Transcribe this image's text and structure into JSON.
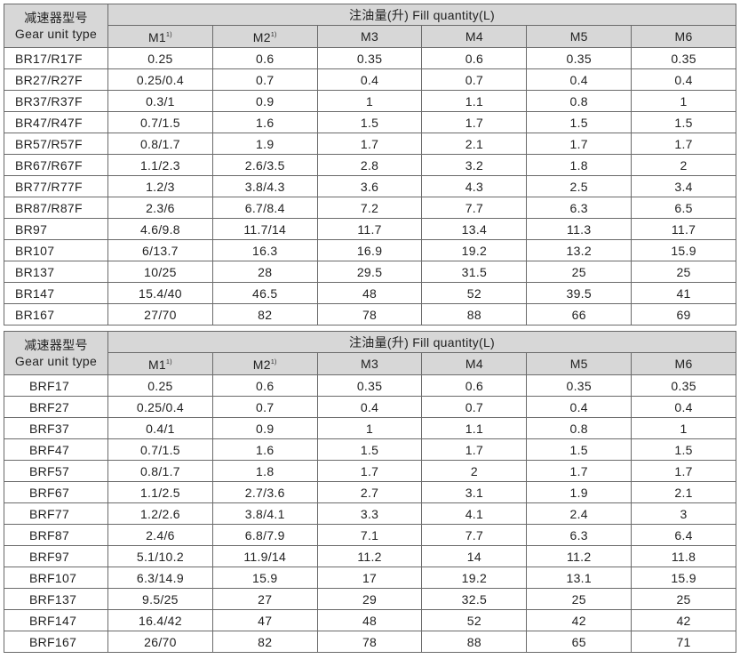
{
  "header": {
    "type_cn": "减速器型号",
    "type_en": "Gear unit type",
    "fill_quantity": "注油量(升) Fill quantity(L)",
    "positions": [
      "M1",
      "M2",
      "M3",
      "M4",
      "M5",
      "M6"
    ],
    "footnote_mark": "1)"
  },
  "tables": [
    {
      "rows": [
        [
          "BR17/R17F",
          "0.25",
          "0.6",
          "0.35",
          "0.6",
          "0.35",
          "0.35"
        ],
        [
          "BR27/R27F",
          "0.25/0.4",
          "0.7",
          "0.4",
          "0.7",
          "0.4",
          "0.4"
        ],
        [
          "BR37/R37F",
          "0.3/1",
          "0.9",
          "1",
          "1.1",
          "0.8",
          "1"
        ],
        [
          "BR47/R47F",
          "0.7/1.5",
          "1.6",
          "1.5",
          "1.7",
          "1.5",
          "1.5"
        ],
        [
          "BR57/R57F",
          "0.8/1.7",
          "1.9",
          "1.7",
          "2.1",
          "1.7",
          "1.7"
        ],
        [
          "BR67/R67F",
          "1.1/2.3",
          "2.6/3.5",
          "2.8",
          "3.2",
          "1.8",
          "2"
        ],
        [
          "BR77/R77F",
          "1.2/3",
          "3.8/4.3",
          "3.6",
          "4.3",
          "2.5",
          "3.4"
        ],
        [
          "BR87/R87F",
          "2.3/6",
          "6.7/8.4",
          "7.2",
          "7.7",
          "6.3",
          "6.5"
        ],
        [
          "BR97",
          "4.6/9.8",
          "11.7/14",
          "11.7",
          "13.4",
          "11.3",
          "11.7"
        ],
        [
          "BR107",
          "6/13.7",
          "16.3",
          "16.9",
          "19.2",
          "13.2",
          "15.9"
        ],
        [
          "BR137",
          "10/25",
          "28",
          "29.5",
          "31.5",
          "25",
          "25"
        ],
        [
          "BR147",
          "15.4/40",
          "46.5",
          "48",
          "52",
          "39.5",
          "41"
        ],
        [
          "BR167",
          "27/70",
          "82",
          "78",
          "88",
          "66",
          "69"
        ]
      ]
    },
    {
      "rows": [
        [
          "BRF17",
          "0.25",
          "0.6",
          "0.35",
          "0.6",
          "0.35",
          "0.35"
        ],
        [
          "BRF27",
          "0.25/0.4",
          "0.7",
          "0.4",
          "0.7",
          "0.4",
          "0.4"
        ],
        [
          "BRF37",
          "0.4/1",
          "0.9",
          "1",
          "1.1",
          "0.8",
          "1"
        ],
        [
          "BRF47",
          "0.7/1.5",
          "1.6",
          "1.5",
          "1.7",
          "1.5",
          "1.5"
        ],
        [
          "BRF57",
          "0.8/1.7",
          "1.8",
          "1.7",
          "2",
          "1.7",
          "1.7"
        ],
        [
          "BRF67",
          "1.1/2.5",
          "2.7/3.6",
          "2.7",
          "3.1",
          "1.9",
          "2.1"
        ],
        [
          "BRF77",
          "1.2/2.6",
          "3.8/4.1",
          "3.3",
          "4.1",
          "2.4",
          "3"
        ],
        [
          "BRF87",
          "2.4/6",
          "6.8/7.9",
          "7.1",
          "7.7",
          "6.3",
          "6.4"
        ],
        [
          "BRF97",
          "5.1/10.2",
          "11.9/14",
          "11.2",
          "14",
          "11.2",
          "11.8"
        ],
        [
          "BRF107",
          "6.3/14.9",
          "15.9",
          "17",
          "19.2",
          "13.1",
          "15.9"
        ],
        [
          "BRF137",
          "9.5/25",
          "27",
          "29",
          "32.5",
          "25",
          "25"
        ],
        [
          "BRF147",
          "16.4/42",
          "47",
          "48",
          "52",
          "42",
          "42"
        ],
        [
          "BRF167",
          "26/70",
          "82",
          "78",
          "88",
          "65",
          "71"
        ]
      ]
    }
  ]
}
